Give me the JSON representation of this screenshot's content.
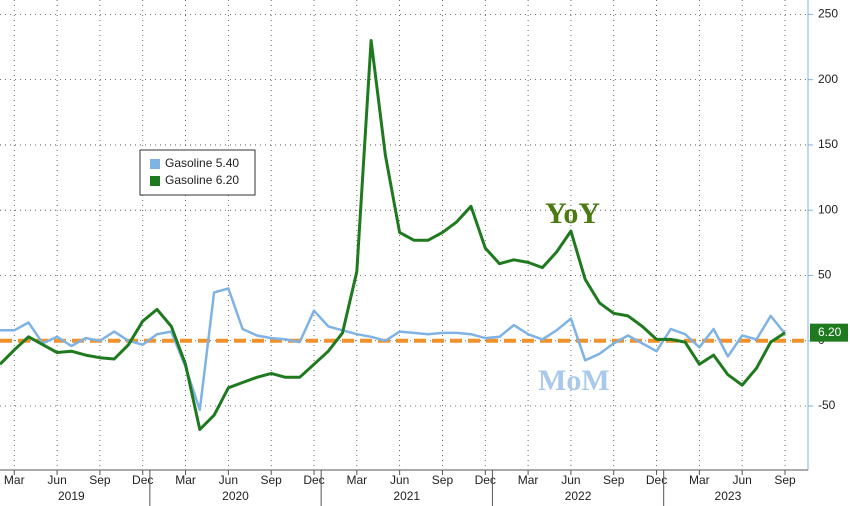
{
  "chart_data": {
    "type": "line",
    "x": [
      "2019-02",
      "2019-03",
      "2019-04",
      "2019-05",
      "2019-06",
      "2019-07",
      "2019-08",
      "2019-09",
      "2019-10",
      "2019-11",
      "2019-12",
      "2020-01",
      "2020-02",
      "2020-03",
      "2020-04",
      "2020-05",
      "2020-06",
      "2020-07",
      "2020-08",
      "2020-09",
      "2020-10",
      "2020-11",
      "2020-12",
      "2021-01",
      "2021-02",
      "2021-03",
      "2021-04",
      "2021-05",
      "2021-06",
      "2021-07",
      "2021-08",
      "2021-09",
      "2021-10",
      "2021-11",
      "2021-12",
      "2022-01",
      "2022-02",
      "2022-03",
      "2022-04",
      "2022-05",
      "2022-06",
      "2022-07",
      "2022-08",
      "2022-09",
      "2022-10",
      "2022-11",
      "2022-12",
      "2023-01",
      "2023-02",
      "2023-03",
      "2023-04",
      "2023-05",
      "2023-06",
      "2023-07",
      "2023-08",
      "2023-09"
    ],
    "series": [
      {
        "name": "Gasoline 5.40",
        "color": "#7fb2e5",
        "values": [
          8,
          8,
          14,
          -2,
          3,
          -4,
          2,
          0,
          7,
          0,
          -3,
          5,
          7,
          -20,
          -53,
          37,
          40,
          9,
          4,
          2,
          1,
          -1,
          23,
          11,
          8,
          5,
          3,
          0,
          7,
          6,
          5,
          6,
          6,
          5,
          2,
          3,
          12,
          5,
          1,
          8,
          17,
          -15,
          -10,
          -2,
          4,
          -2,
          -8,
          9,
          5,
          -5,
          9,
          -12,
          4,
          1,
          19,
          5.4
        ]
      },
      {
        "name": "Gasoline 6.20",
        "color": "#1f7a1f",
        "values": [
          -18,
          -7,
          3,
          -3,
          -9,
          -8,
          -11,
          -13,
          -14,
          -3,
          15,
          24,
          11,
          -18,
          -68,
          -57,
          -36,
          -32,
          -28,
          -25,
          -28,
          -28,
          -18,
          -8,
          6,
          53,
          230,
          142,
          83,
          77,
          77,
          83,
          91,
          103,
          71,
          59,
          62,
          60,
          56,
          68,
          84,
          47,
          29,
          21,
          19,
          11,
          1,
          1,
          -1,
          -18,
          -11,
          -26,
          -34,
          -21,
          -1,
          6.2
        ],
        "value_labels": [
          null,
          null,
          null,
          null,
          null,
          null,
          null,
          null,
          null,
          null,
          null,
          null,
          null,
          null,
          null,
          null,
          null,
          null,
          null,
          null,
          null,
          null,
          null,
          null,
          null,
          null,
          null,
          null,
          null,
          null,
          null,
          null,
          null,
          null,
          null,
          null,
          null,
          null,
          null,
          null,
          null,
          null,
          null,
          null,
          null,
          null,
          null,
          null,
          null,
          null,
          null,
          null,
          null,
          null,
          null,
          "6.20"
        ]
      }
    ],
    "reference_line": {
      "value": 0,
      "color": "#f0922b"
    },
    "annotations": [
      {
        "text": "YoY",
        "color": "#4a7a10"
      },
      {
        "text": "MoM",
        "color": "#a8c8ec"
      }
    ],
    "ylim": [
      -99,
      261
    ],
    "yticks": [
      -50,
      0,
      50,
      100,
      150,
      200,
      250
    ],
    "grid": true,
    "xticks": [
      {
        "value": "2019-03",
        "label": "Mar"
      },
      {
        "value": "2019-06",
        "label": "Jun"
      },
      {
        "value": "2019-09",
        "label": "Sep"
      },
      {
        "value": "2019-12",
        "label": "Dec"
      },
      {
        "value": "2020-03",
        "label": "Mar"
      },
      {
        "value": "2020-06",
        "label": "Jun"
      },
      {
        "value": "2020-09",
        "label": "Sep"
      },
      {
        "value": "2020-12",
        "label": "Dec"
      },
      {
        "value": "2021-03",
        "label": "Mar"
      },
      {
        "value": "2021-06",
        "label": "Jun"
      },
      {
        "value": "2021-09",
        "label": "Sep"
      },
      {
        "value": "2021-12",
        "label": "Dec"
      },
      {
        "value": "2022-03",
        "label": "Mar"
      },
      {
        "value": "2022-06",
        "label": "Jun"
      },
      {
        "value": "2022-09",
        "label": "Sep"
      },
      {
        "value": "2022-12",
        "label": "Dec"
      },
      {
        "value": "2023-03",
        "label": "Mar"
      },
      {
        "value": "2023-06",
        "label": "Jun"
      },
      {
        "value": "2023-09",
        "label": "Sep"
      }
    ],
    "years": [
      "2019",
      "2020",
      "2021",
      "2022",
      "2023"
    ],
    "legend": "upper-left"
  }
}
